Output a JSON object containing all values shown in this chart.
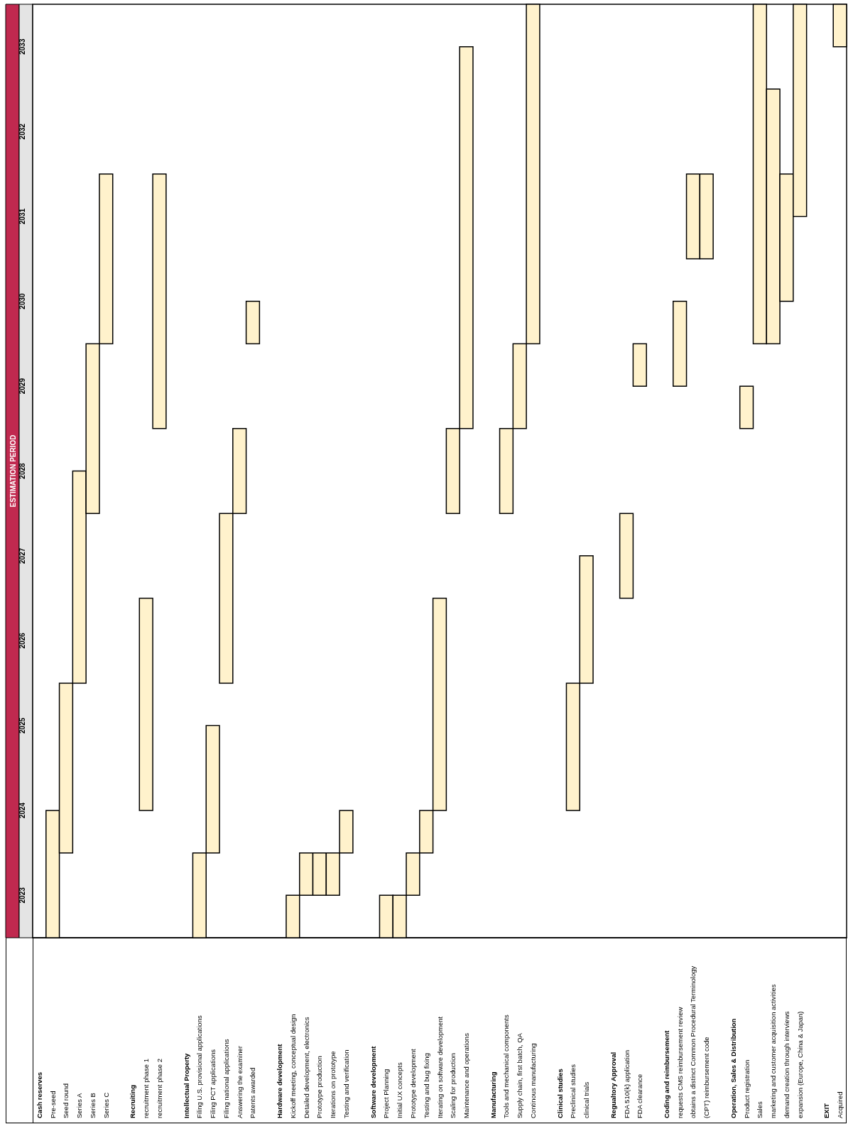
{
  "chart_data": {
    "type": "bar",
    "title": "ESTIMATION PERIOD",
    "categories": [
      "Cash reserves",
      "Pre-seed",
      "Seed round",
      "Series A",
      "Series B",
      "Series C",
      null,
      "Recruiting",
      "recruitment phase 1",
      "recruitment phase 2",
      null,
      "Intellectual Property",
      "Filing U.S. provisional applications",
      "Filing PCT applications",
      "Filing national applications",
      "Answering the examiner",
      "Patents awarded",
      null,
      "Hardware development",
      "Kickoff meeting, conceptual design",
      "Detailed development, electronics",
      "Prototype production",
      "Iterations on prototype",
      "Testing and verification",
      null,
      "Software development",
      "Project Planning",
      "Initial UX concepts",
      "Prototype development",
      "Testing and bug fixing",
      "Iterating on software development",
      "Scaling for production",
      "Maintenance and operations",
      null,
      "Manufacturing",
      "Tools and mechanical components",
      "Supply chain, first batch, QA",
      "Continous manufacturing",
      null,
      "Clinical studies",
      "Preclinical studies",
      "clinical trials",
      null,
      "Regualtory Approval",
      "FDA 510(k) application",
      "FDA clearance",
      null,
      "Coding and reimbursement",
      "requests CMS reimbursement review",
      "obtains a distinct Common Procedural Terminology",
      "(CPT) reimbursement code",
      null,
      "Operation, Sales & Distribution",
      "Product registration",
      "Sales",
      "marketing and customer acquisition activities",
      "demand creation through interviews",
      "expansion (Europe, China & Japan)",
      null,
      "EXIT",
      "Acquired"
    ],
    "base": [
      null,
      2022.5,
      2023.5,
      2025.5,
      2027.5,
      2029.5,
      null,
      null,
      2024.0,
      2028.5,
      null,
      null,
      2022.5,
      2023.5,
      2025.5,
      2027.5,
      2029.5,
      null,
      null,
      2022.5,
      2023.0,
      2023.0,
      2023.0,
      2023.5,
      null,
      null,
      2022.5,
      2022.5,
      2023.0,
      2023.5,
      2024.0,
      2027.5,
      2028.5,
      null,
      null,
      2027.5,
      2028.5,
      2029.5,
      null,
      null,
      2024.0,
      2025.5,
      null,
      null,
      2026.5,
      2029.0,
      null,
      null,
      2029.0,
      2030.5,
      2030.5,
      null,
      null,
      2028.5,
      2029.5,
      2029.5,
      2030.0,
      2031.0,
      null,
      null,
      2033.0
    ],
    "values": [
      null,
      1.5,
      2,
      2.5,
      2,
      2,
      null,
      null,
      2.5,
      3,
      null,
      null,
      1,
      1.5,
      2,
      1,
      0.5,
      null,
      null,
      0.5,
      0.5,
      0.5,
      0.5,
      0.5,
      null,
      null,
      0.5,
      0.5,
      0.5,
      0.5,
      2.5,
      1,
      4.5,
      null,
      null,
      1,
      1,
      4,
      null,
      null,
      1.5,
      1.5,
      null,
      null,
      1,
      0.5,
      null,
      null,
      1,
      1,
      1,
      null,
      null,
      0.5,
      4,
      3,
      1.5,
      2.5,
      null,
      null,
      0.5
    ],
    "color": "#fff2cc",
    "ylim": [
      2022.5,
      2033.5
    ],
    "yticks": [
      2023,
      2024,
      2025,
      2026,
      2027,
      2028,
      2029,
      2030,
      2031,
      2032,
      2033
    ]
  }
}
